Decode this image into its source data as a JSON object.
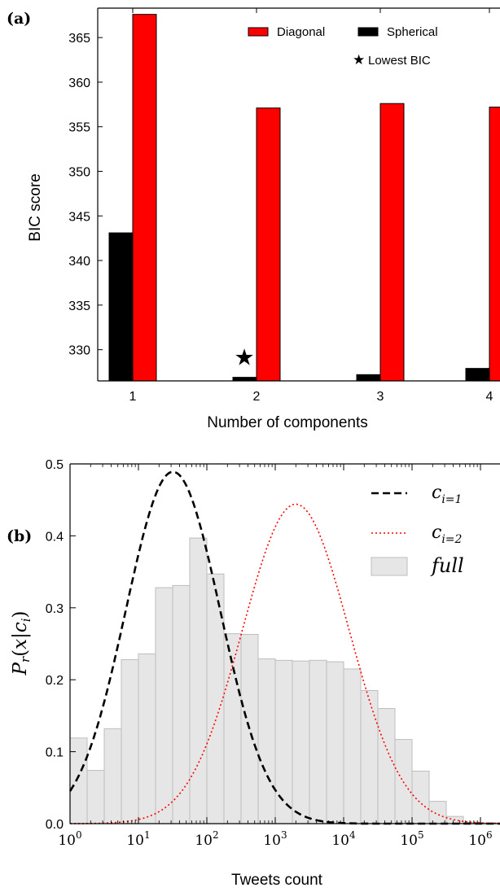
{
  "chart_data": [
    {
      "panel_label": "(a)",
      "type": "bar",
      "categories": [
        "1",
        "2",
        "3",
        "4"
      ],
      "series": [
        {
          "name": "Spherical",
          "color": "#000000",
          "values": [
            343.1,
            326.9,
            327.2,
            327.9
          ]
        },
        {
          "name": "Diagonal",
          "color": "#ff0000",
          "values": [
            367.6,
            357.1,
            357.6,
            357.2
          ]
        }
      ],
      "xlabel": "Number of components",
      "ylabel": "BIC score",
      "ylim": [
        326.5,
        368.3
      ],
      "yticks": [
        "330",
        "335",
        "340",
        "345",
        "350",
        "355",
        "360",
        "365"
      ],
      "grid": false,
      "legend_position": "top-right",
      "annotation": {
        "symbol": "★",
        "label": "Lowest BIC",
        "category": "2",
        "value": 329.2
      }
    },
    {
      "panel_label": "(b)",
      "type": "bar",
      "xscale": "log",
      "xlabel": "Tweets count",
      "ylabel": "Pr(x|c_i)",
      "xlim": [
        1,
        2000000
      ],
      "ylim": [
        0.0,
        0.5
      ],
      "yticks": [
        "0.0",
        "0.1",
        "0.2",
        "0.3",
        "0.4",
        "0.5"
      ],
      "xticks": [
        {
          "base": "10",
          "exp": "0"
        },
        {
          "base": "10",
          "exp": "1"
        },
        {
          "base": "10",
          "exp": "2"
        },
        {
          "base": "10",
          "exp": "3"
        },
        {
          "base": "10",
          "exp": "4"
        },
        {
          "base": "10",
          "exp": "5"
        },
        {
          "base": "10",
          "exp": "6"
        }
      ],
      "grid": false,
      "legend_position": "top-right",
      "histogram": {
        "name": "full",
        "color": "#e6e6e6",
        "bins_log10_start": 0.0,
        "bin_width_log10": 0.25,
        "values": [
          0.119,
          0.074,
          0.132,
          0.228,
          0.236,
          0.328,
          0.331,
          0.397,
          0.347,
          0.264,
          0.263,
          0.229,
          0.227,
          0.226,
          0.227,
          0.225,
          0.215,
          0.185,
          0.16,
          0.117,
          0.073,
          0.031,
          0.01,
          0.002,
          0.001
        ]
      },
      "curves": [
        {
          "name": "c_{i=1}",
          "style": "dashed",
          "color": "#000000",
          "peak_x": 32,
          "peak_y": 0.489,
          "sigma_log10": 0.69
        },
        {
          "name": "c_{i=2}",
          "style": "dotted",
          "color": "#ff0000",
          "peak_x": 1995,
          "peak_y": 0.444,
          "sigma_log10": 0.78
        }
      ]
    }
  ]
}
